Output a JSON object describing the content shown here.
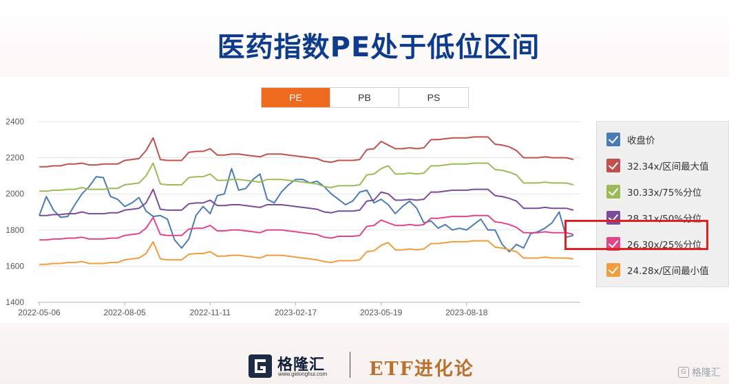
{
  "header": {
    "title": "医药指数PE处于低位区间"
  },
  "tabs": [
    {
      "label": "PE",
      "active": true
    },
    {
      "label": "PB",
      "active": false
    },
    {
      "label": "PS",
      "active": false
    }
  ],
  "footer": {
    "brand": "格隆汇",
    "brand_url": "www.gelonghui.com",
    "series_name": "ETF进化论",
    "watermark": "格隆汇"
  },
  "colors": {
    "title": "#0f3b8c",
    "tab_active": "#ee6a1f",
    "highlight": "#e02020"
  },
  "chart_data": {
    "type": "line",
    "title": "",
    "xlabel": "",
    "ylabel": "",
    "ylim": [
      1400,
      2400
    ],
    "yticks": [
      1400,
      1600,
      1800,
      2000,
      2200,
      2400
    ],
    "x_tick_labels": [
      "2022-05-06",
      "2022-08-05",
      "2022-11-11",
      "2023-02-17",
      "2023-05-19",
      "2023-08-18"
    ],
    "x_tick_index": [
      0,
      12,
      24,
      36,
      48,
      60
    ],
    "grid": "horizontal",
    "legend_position": "right",
    "highlighted_legend_entry": "26.30x/25%分位",
    "series": [
      {
        "name": "收盘价",
        "color": "#4a7bb4",
        "values": [
          1880,
          1985,
          1910,
          1870,
          1875,
          1940,
          2000,
          2040,
          2095,
          2090,
          1985,
          1970,
          1930,
          1950,
          1980,
          1905,
          1875,
          1880,
          1860,
          1745,
          1700,
          1750,
          1880,
          1930,
          1890,
          1990,
          2000,
          2140,
          2020,
          2030,
          2080,
          2110,
          1970,
          1950,
          2010,
          2050,
          2080,
          2080,
          2060,
          2070,
          2040,
          2000,
          1970,
          1940,
          1960,
          2010,
          2020,
          1950,
          1970,
          1940,
          1890,
          1930,
          1960,
          1920,
          1840,
          1850,
          1810,
          1830,
          1800,
          1810,
          1800,
          1830,
          1860,
          1800,
          1800,
          1720,
          1680,
          1720,
          1700,
          1780,
          1790,
          1810,
          1840,
          1900,
          1760,
          1770
        ]
      },
      {
        "name": "32.34x/区间最大值",
        "color": "#c0504d",
        "values": [
          2150,
          2150,
          2155,
          2155,
          2165,
          2165,
          2170,
          2160,
          2160,
          2165,
          2165,
          2165,
          2185,
          2190,
          2195,
          2240,
          2310,
          2190,
          2185,
          2185,
          2185,
          2230,
          2235,
          2235,
          2250,
          2215,
          2215,
          2220,
          2220,
          2215,
          2210,
          2205,
          2220,
          2220,
          2220,
          2215,
          2210,
          2205,
          2200,
          2195,
          2180,
          2175,
          2185,
          2185,
          2185,
          2190,
          2245,
          2250,
          2290,
          2270,
          2250,
          2250,
          2255,
          2250,
          2255,
          2300,
          2300,
          2305,
          2310,
          2310,
          2310,
          2315,
          2315,
          2315,
          2275,
          2270,
          2260,
          2240,
          2200,
          2200,
          2200,
          2205,
          2200,
          2200,
          2200,
          2190
        ]
      },
      {
        "name": "30.33x/75%分位",
        "color": "#9bbb59",
        "values": [
          2015,
          2015,
          2020,
          2020,
          2025,
          2025,
          2035,
          2025,
          2025,
          2025,
          2030,
          2030,
          2050,
          2055,
          2060,
          2100,
          2170,
          2055,
          2050,
          2050,
          2050,
          2090,
          2095,
          2095,
          2110,
          2075,
          2075,
          2080,
          2080,
          2075,
          2070,
          2065,
          2080,
          2080,
          2080,
          2075,
          2070,
          2065,
          2060,
          2055,
          2040,
          2035,
          2045,
          2045,
          2045,
          2050,
          2105,
          2110,
          2140,
          2155,
          2110,
          2110,
          2115,
          2110,
          2115,
          2155,
          2155,
          2160,
          2165,
          2165,
          2165,
          2170,
          2170,
          2170,
          2135,
          2130,
          2120,
          2105,
          2060,
          2060,
          2060,
          2065,
          2060,
          2060,
          2060,
          2050
        ]
      },
      {
        "name": "28.31x/50%分位",
        "color": "#7a4b99",
        "values": [
          1880,
          1880,
          1885,
          1885,
          1890,
          1890,
          1900,
          1890,
          1890,
          1890,
          1895,
          1895,
          1910,
          1915,
          1920,
          1950,
          2025,
          1915,
          1910,
          1910,
          1910,
          1945,
          1950,
          1950,
          1965,
          1935,
          1935,
          1940,
          1940,
          1935,
          1930,
          1925,
          1940,
          1940,
          1940,
          1935,
          1930,
          1925,
          1920,
          1915,
          1900,
          1895,
          1905,
          1905,
          1905,
          1910,
          1960,
          1965,
          2010,
          2000,
          1965,
          1965,
          1970,
          1965,
          1970,
          2010,
          2010,
          2015,
          2020,
          2020,
          2020,
          2025,
          2025,
          2025,
          1990,
          1985,
          1975,
          1960,
          1920,
          1920,
          1920,
          1925,
          1920,
          1920,
          1920,
          1910
        ]
      },
      {
        "name": "26.30x/25%分位",
        "color": "#e0468a",
        "values": [
          1745,
          1745,
          1750,
          1750,
          1755,
          1755,
          1760,
          1750,
          1750,
          1750,
          1755,
          1755,
          1770,
          1775,
          1780,
          1810,
          1870,
          1775,
          1770,
          1770,
          1770,
          1805,
          1810,
          1810,
          1825,
          1795,
          1795,
          1800,
          1800,
          1795,
          1790,
          1785,
          1800,
          1800,
          1800,
          1795,
          1790,
          1785,
          1780,
          1775,
          1760,
          1755,
          1765,
          1765,
          1765,
          1770,
          1820,
          1825,
          1855,
          1840,
          1825,
          1825,
          1830,
          1825,
          1830,
          1865,
          1865,
          1870,
          1875,
          1875,
          1875,
          1880,
          1880,
          1880,
          1845,
          1840,
          1830,
          1815,
          1785,
          1785,
          1785,
          1790,
          1785,
          1785,
          1785,
          1775
        ]
      },
      {
        "name": "24.28x/区间最小值",
        "color": "#f29c3c",
        "values": [
          1610,
          1610,
          1615,
          1615,
          1620,
          1620,
          1625,
          1615,
          1615,
          1615,
          1620,
          1620,
          1635,
          1640,
          1645,
          1670,
          1735,
          1640,
          1635,
          1635,
          1635,
          1665,
          1670,
          1670,
          1680,
          1655,
          1655,
          1660,
          1660,
          1655,
          1650,
          1645,
          1660,
          1660,
          1660,
          1655,
          1650,
          1645,
          1640,
          1635,
          1625,
          1620,
          1630,
          1630,
          1630,
          1635,
          1680,
          1685,
          1715,
          1730,
          1690,
          1690,
          1695,
          1690,
          1695,
          1725,
          1725,
          1730,
          1735,
          1735,
          1735,
          1740,
          1740,
          1740,
          1705,
          1700,
          1690,
          1680,
          1645,
          1645,
          1645,
          1650,
          1645,
          1645,
          1645,
          1640
        ]
      }
    ]
  }
}
